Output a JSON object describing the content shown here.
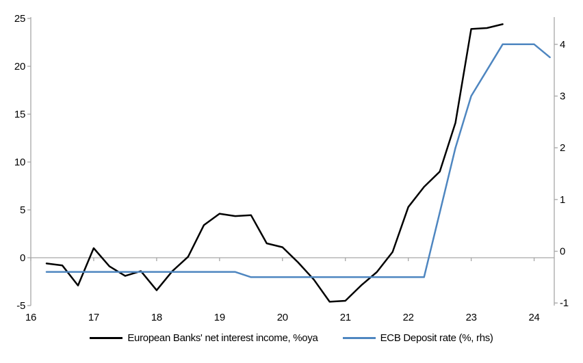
{
  "chart_data": {
    "type": "line",
    "title": "",
    "xlabel": "",
    "ylabel_left": "",
    "ylabel_right": "",
    "grid": "zero-line-only",
    "legend_position": "bottom-center",
    "axes": {
      "x": {
        "domain": [
          16,
          24.32
        ],
        "ticks": [
          "16",
          "17",
          "18",
          "19",
          "20",
          "21",
          "22",
          "23",
          "24"
        ],
        "tick_values": [
          16,
          17,
          18,
          19,
          20,
          21,
          22,
          23,
          24
        ]
      },
      "left": {
        "domain": [
          -5,
          25
        ],
        "ticks": [
          "25",
          "20",
          "15",
          "10",
          "5",
          "0",
          "-5"
        ],
        "tick_values": [
          25,
          20,
          15,
          10,
          5,
          0,
          -5
        ]
      },
      "right": {
        "domain": [
          -1.05,
          4.5
        ],
        "ticks": [
          "4",
          "3",
          "2",
          "1",
          "0",
          "-1"
        ],
        "tick_values": [
          4,
          3,
          2,
          1,
          0,
          -1
        ]
      }
    },
    "series": [
      {
        "name": "European Banks' net interest income, %oya",
        "axis": "left",
        "color": "#000000",
        "x": [
          16.25,
          16.5,
          16.75,
          17.0,
          17.25,
          17.5,
          17.75,
          18.0,
          18.25,
          18.5,
          18.75,
          19.0,
          19.25,
          19.5,
          19.75,
          20.0,
          20.25,
          20.5,
          20.75,
          21.0,
          21.25,
          21.5,
          21.75,
          22.0,
          22.25,
          22.5,
          22.75,
          23.0,
          23.25,
          23.5
        ],
        "values": [
          -0.6,
          -0.8,
          -2.9,
          1.0,
          -0.9,
          -1.9,
          -1.4,
          -3.4,
          -1.4,
          0.1,
          3.4,
          4.6,
          4.35,
          4.45,
          1.5,
          1.1,
          -0.5,
          -2.3,
          -4.6,
          -4.5,
          -2.9,
          -1.5,
          0.6,
          5.3,
          7.4,
          9.0,
          14.1,
          23.9,
          24.0,
          24.4
        ]
      },
      {
        "name": "ECB Deposit rate (%, rhs)",
        "axis": "right",
        "color": "#4e86c0",
        "x": [
          16.25,
          16.5,
          16.75,
          17.0,
          17.25,
          17.5,
          17.75,
          18.0,
          18.25,
          18.5,
          18.75,
          19.0,
          19.25,
          19.5,
          19.75,
          20.0,
          20.25,
          20.5,
          20.75,
          21.0,
          21.25,
          21.5,
          21.75,
          22.0,
          22.25,
          22.5,
          22.75,
          23.0,
          23.25,
          23.5,
          23.75,
          24.0,
          24.25
        ],
        "values": [
          -0.4,
          -0.4,
          -0.4,
          -0.4,
          -0.4,
          -0.4,
          -0.4,
          -0.4,
          -0.4,
          -0.4,
          -0.4,
          -0.4,
          -0.4,
          -0.5,
          -0.5,
          -0.5,
          -0.5,
          -0.5,
          -0.5,
          -0.5,
          -0.5,
          -0.5,
          -0.5,
          -0.5,
          -0.5,
          0.75,
          2.0,
          3.0,
          3.5,
          4.0,
          4.0,
          4.0,
          3.75
        ]
      }
    ]
  },
  "colors": {
    "axis": "#a6a6a6",
    "background": "#ffffff",
    "text": "#000000"
  }
}
